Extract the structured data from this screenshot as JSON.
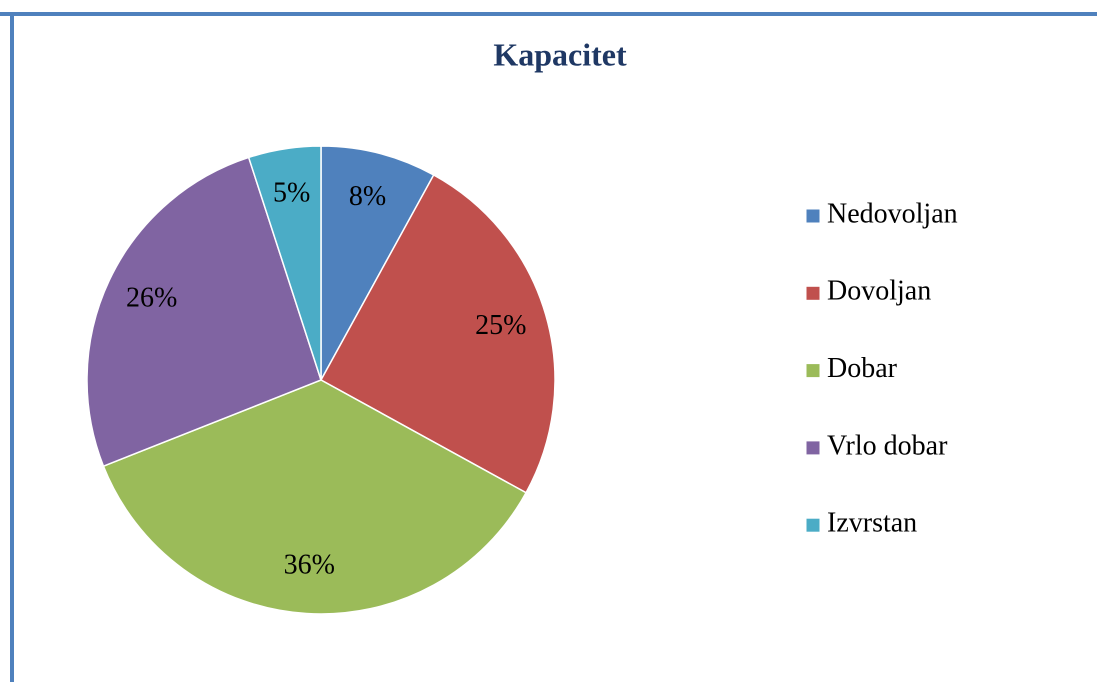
{
  "chart_data": {
    "type": "pie",
    "title": "Kapacitet",
    "categories": [
      "Nedovoljan",
      "Dovoljan",
      "Dobar",
      "Vrlo dobar",
      "Izvrstan"
    ],
    "values": [
      8,
      25,
      36,
      26,
      5
    ],
    "value_labels": [
      "8%",
      "25%",
      "36%",
      "26%",
      "5%"
    ],
    "colors": [
      "#4f81bd",
      "#c0504d",
      "#9bbb59",
      "#8064a2",
      "#4bacc6"
    ],
    "legend": "right"
  }
}
